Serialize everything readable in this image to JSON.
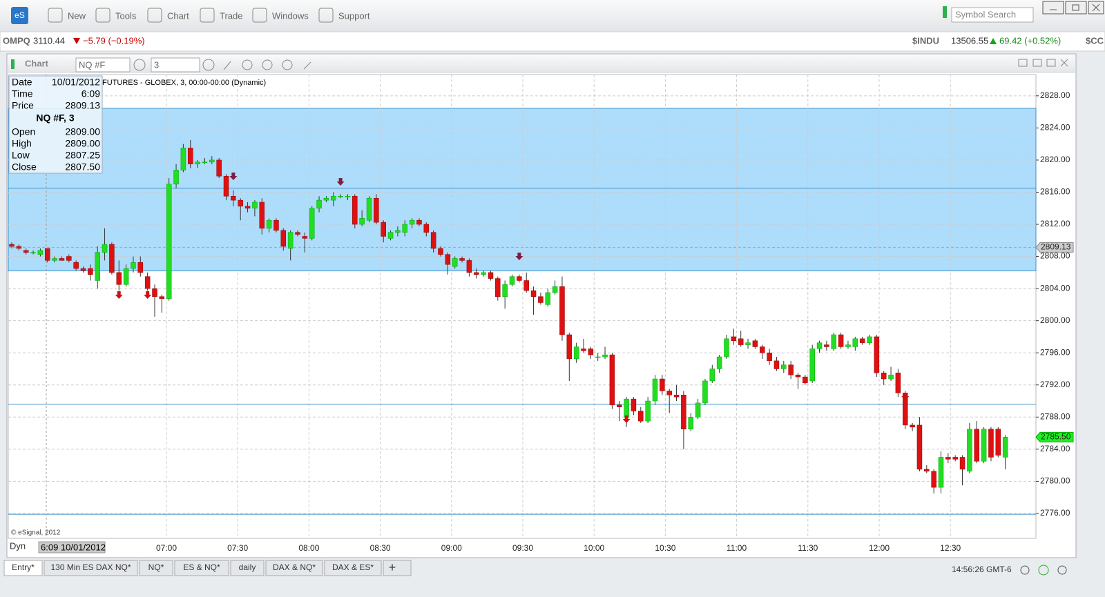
{
  "toolbar": {
    "logo": "eS",
    "buttons": [
      "New",
      "Tools",
      "Chart",
      "Trade",
      "Windows",
      "Support"
    ],
    "search_placeholder": "Symbol Search"
  },
  "ticker": {
    "left": {
      "symbol": "OMPQ",
      "price": "3110.44",
      "change": "−5.79 (−0.19%)"
    },
    "right": {
      "symbol": "$INDU",
      "price": "13506.55",
      "change": "69.42 (+0.52%)",
      "next": "$CC"
    }
  },
  "window": {
    "title": "Chart",
    "symbol": "NQ #F",
    "interval": "3"
  },
  "info": {
    "rows": [
      [
        "Date",
        "10/01/2012"
      ],
      [
        "Time",
        "6:09"
      ],
      [
        "Price",
        "2809.13"
      ]
    ],
    "symbol": "NQ #F, 3",
    "ohlc": [
      [
        "Open",
        "2809.00"
      ],
      [
        "High",
        "2809.00"
      ],
      [
        "Low",
        "2807.25"
      ],
      [
        "Close",
        "2807.50"
      ]
    ]
  },
  "chart_data": {
    "type": "candlestick",
    "subtitle": "FUTURES - GLOBEX, 3, 00:00-00:00 (Dynamic)",
    "copyright": "© eSignal, 2012",
    "up_color": "#22dd22",
    "down_color": "#dd1111",
    "ylim": [
      2772.9,
      2830.65
    ],
    "yticks": [
      {
        "value": 2776,
        "label": "2776.00"
      },
      {
        "value": 2780,
        "label": "2780.00"
      },
      {
        "value": 2784,
        "label": "2784.00"
      },
      {
        "value": 2788,
        "label": "2788.00"
      },
      {
        "value": 2792,
        "label": "2792.00"
      },
      {
        "value": 2796,
        "label": "2796.00"
      },
      {
        "value": 2800,
        "label": "2800.00"
      },
      {
        "value": 2804,
        "label": "2804.00"
      },
      {
        "value": 2808,
        "label": "2808.00"
      },
      {
        "value": 2812,
        "label": "2812.00"
      },
      {
        "value": 2816,
        "label": "2816.00"
      },
      {
        "value": 2820,
        "label": "2820.00"
      },
      {
        "value": 2824,
        "label": "2824.00"
      },
      {
        "value": 2828,
        "label": "2828.00"
      }
    ],
    "x_labels": [
      "07:00",
      "07:30",
      "08:00",
      "08:30",
      "09:00",
      "09:30",
      "10:00",
      "10:30",
      "11:00",
      "11:30",
      "12:00",
      "12:30"
    ],
    "zone": [
      2806.2,
      2826.45
    ],
    "levels": [
      2816.5,
      2789.6,
      2775.9
    ],
    "crosshair_price": 2809.13,
    "last_price": {
      "value": 2785.5,
      "label": "2785.50"
    },
    "candles": [
      [
        2809.5,
        2809.75,
        2809,
        2809.25
      ],
      [
        2809.25,
        2809.5,
        2808.75,
        2809
      ],
      [
        2808.75,
        2809,
        2808.25,
        2808.5
      ],
      [
        2808.5,
        2808.75,
        2808.25,
        2808.5
      ],
      [
        2808.25,
        2809,
        2808,
        2808.75
      ],
      [
        2809,
        2809,
        2807.25,
        2807.5
      ],
      [
        2807.5,
        2808,
        2807.25,
        2807.75
      ],
      [
        2807.75,
        2808,
        2807.5,
        2807.5
      ],
      [
        2808,
        2808.25,
        2807.25,
        2807.5
      ],
      [
        2807.25,
        2807.5,
        2806.25,
        2806.5
      ],
      [
        2806.5,
        2806.75,
        2806,
        2806.25
      ],
      [
        2806.5,
        2807,
        2805,
        2805.75
      ],
      [
        2805,
        2809.25,
        2804,
        2808.5
      ],
      [
        2808.5,
        2811.5,
        2807.5,
        2809.5
      ],
      [
        2809.5,
        2809.75,
        2805.75,
        2806
      ],
      [
        2806,
        2807.5,
        2803.75,
        2804.5
      ],
      [
        2804.5,
        2807,
        2804.25,
        2806.5
      ],
      [
        2806.5,
        2808,
        2806,
        2807.25
      ],
      [
        2807.25,
        2808,
        2805.5,
        2806
      ],
      [
        2805.5,
        2806,
        2803.75,
        2804
      ],
      [
        2804,
        2804.5,
        2800.5,
        2803
      ],
      [
        2803,
        2803.25,
        2801,
        2802.75
      ],
      [
        2802.75,
        2817.75,
        2802.5,
        2817
      ],
      [
        2817,
        2819.5,
        2816.5,
        2818.75
      ],
      [
        2818.75,
        2822,
        2818.5,
        2821.5
      ],
      [
        2821.5,
        2822.5,
        2819,
        2819.5
      ],
      [
        2819.5,
        2820,
        2819,
        2819.75
      ],
      [
        2819.75,
        2820.25,
        2819.5,
        2819.75
      ],
      [
        2819.75,
        2820.5,
        2819.5,
        2820
      ],
      [
        2820,
        2820.25,
        2817.75,
        2818
      ],
      [
        2818,
        2818.25,
        2815,
        2815.5
      ],
      [
        2815.5,
        2816.25,
        2814.25,
        2815
      ],
      [
        2815,
        2815.25,
        2812.5,
        2814.25
      ],
      [
        2814.25,
        2814.75,
        2813.5,
        2814
      ],
      [
        2814,
        2815,
        2813,
        2814.75
      ],
      [
        2814.75,
        2815.25,
        2810.75,
        2811.5
      ],
      [
        2811.5,
        2812.75,
        2811,
        2812.5
      ],
      [
        2812.5,
        2812.75,
        2811,
        2811.25
      ],
      [
        2811.25,
        2811.5,
        2808.75,
        2809.25
      ],
      [
        2809,
        2811.25,
        2807.5,
        2811
      ],
      [
        2811,
        2811.25,
        2810.5,
        2810.75
      ],
      [
        2810.5,
        2811,
        2808.5,
        2810.25
      ],
      [
        2810.25,
        2814.25,
        2810,
        2814
      ],
      [
        2814,
        2815.5,
        2813.5,
        2815
      ],
      [
        2815,
        2815.5,
        2814.75,
        2815.25
      ],
      [
        2815,
        2816,
        2814.25,
        2815.5
      ],
      [
        2815.5,
        2815.75,
        2815.25,
        2815.5
      ],
      [
        2815.5,
        2815.75,
        2815,
        2815.5
      ],
      [
        2815.5,
        2815.75,
        2811.5,
        2812
      ],
      [
        2812,
        2813.75,
        2811.75,
        2812.75
      ],
      [
        2812.5,
        2815.5,
        2812.25,
        2815.25
      ],
      [
        2815.25,
        2815.75,
        2812,
        2812.25
      ],
      [
        2812.25,
        2812.5,
        2809.75,
        2810.5
      ],
      [
        2810.25,
        2811.25,
        2810,
        2811
      ],
      [
        2811,
        2811.75,
        2810.5,
        2811.25
      ],
      [
        2811,
        2812.5,
        2810.5,
        2812
      ],
      [
        2812,
        2812.75,
        2811.5,
        2812.5
      ],
      [
        2812.5,
        2812.75,
        2811.75,
        2812
      ],
      [
        2812,
        2812.25,
        2810.5,
        2811
      ],
      [
        2811,
        2811.25,
        2808.5,
        2809
      ],
      [
        2809,
        2809.25,
        2808,
        2808.25
      ],
      [
        2808.25,
        2808.5,
        2805.75,
        2807
      ],
      [
        2806.75,
        2808,
        2806.5,
        2807.75
      ],
      [
        2807.75,
        2808,
        2807.25,
        2807.5
      ],
      [
        2807.5,
        2807.75,
        2805.5,
        2806
      ],
      [
        2806,
        2806.5,
        2805.25,
        2805.75
      ],
      [
        2805.75,
        2806.25,
        2805.5,
        2806
      ],
      [
        2806,
        2806.25,
        2805,
        2805.25
      ],
      [
        2805.25,
        2805.5,
        2802.5,
        2803
      ],
      [
        2803,
        2805,
        2801.5,
        2804.5
      ],
      [
        2804.5,
        2805.75,
        2804.25,
        2805.5
      ],
      [
        2805.5,
        2805.75,
        2804.75,
        2805
      ],
      [
        2805,
        2806,
        2803.5,
        2803.75
      ],
      [
        2803.75,
        2804.25,
        2800.75,
        2803
      ],
      [
        2803,
        2803.5,
        2802,
        2802.25
      ],
      [
        2802,
        2804,
        2801.75,
        2803.5
      ],
      [
        2803.5,
        2805,
        2803.25,
        2804.25
      ],
      [
        2804.25,
        2805.5,
        2797.5,
        2798.25
      ],
      [
        2798.25,
        2798.5,
        2792.5,
        2795.25
      ],
      [
        2795.25,
        2797.25,
        2794.75,
        2796.75
      ],
      [
        2796.5,
        2797.75,
        2796,
        2796.25
      ],
      [
        2796.5,
        2796.75,
        2795.25,
        2795.75
      ],
      [
        2795.5,
        2796,
        2795,
        2795.5
      ],
      [
        2795.5,
        2796.75,
        2795.25,
        2795.75
      ],
      [
        2795.75,
        2796,
        2789,
        2789.5
      ],
      [
        2789.5,
        2790,
        2787.5,
        2789.25
      ],
      [
        2788,
        2790.5,
        2786.75,
        2790.25
      ],
      [
        2790.25,
        2790.5,
        2788.25,
        2788.75
      ],
      [
        2788.75,
        2789.25,
        2787.25,
        2787.5
      ],
      [
        2787.5,
        2790.5,
        2787.25,
        2790
      ],
      [
        2790,
        2793.25,
        2789.5,
        2792.75
      ],
      [
        2792.75,
        2793.25,
        2790.75,
        2791.25
      ],
      [
        2791.25,
        2791.5,
        2788.5,
        2790.75
      ],
      [
        2790.75,
        2792,
        2790,
        2790.5
      ],
      [
        2790.75,
        2791.25,
        2784,
        2786.5
      ],
      [
        2786.5,
        2788.5,
        2786.25,
        2788
      ],
      [
        2788,
        2790.25,
        2787.75,
        2789.75
      ],
      [
        2789.75,
        2792.75,
        2789.5,
        2792.5
      ],
      [
        2792.5,
        2794.5,
        2792.25,
        2794
      ],
      [
        2794,
        2795.75,
        2793.5,
        2795.5
      ],
      [
        2795.5,
        2798.25,
        2795.25,
        2797.75
      ],
      [
        2798,
        2799,
        2797,
        2797.5
      ],
      [
        2797.75,
        2798.75,
        2796.75,
        2797
      ],
      [
        2797,
        2797.75,
        2796.5,
        2797.25
      ],
      [
        2797.5,
        2797.75,
        2796.5,
        2796.75
      ],
      [
        2796.75,
        2797,
        2795.25,
        2796
      ],
      [
        2796,
        2796.5,
        2794.5,
        2795
      ],
      [
        2795,
        2795.5,
        2793.75,
        2794
      ],
      [
        2794,
        2795,
        2793.5,
        2794.5
      ],
      [
        2794.5,
        2795,
        2792.75,
        2793.25
      ],
      [
        2793.25,
        2793.5,
        2791.5,
        2793
      ],
      [
        2793,
        2793.25,
        2792,
        2792.25
      ],
      [
        2792.5,
        2797,
        2792.25,
        2796.5
      ],
      [
        2796.5,
        2797.5,
        2796,
        2797.25
      ],
      [
        2797,
        2797.5,
        2796.25,
        2796.75
      ],
      [
        2796.5,
        2798.5,
        2796.25,
        2798.25
      ],
      [
        2798.25,
        2798.5,
        2796.5,
        2796.75
      ],
      [
        2796.75,
        2797.5,
        2796.5,
        2797
      ],
      [
        2796.75,
        2798,
        2796.25,
        2797.75
      ],
      [
        2797.75,
        2798,
        2797,
        2797.25
      ],
      [
        2797.25,
        2798.25,
        2797,
        2798
      ],
      [
        2798,
        2798.25,
        2793,
        2793.5
      ],
      [
        2793.5,
        2793.75,
        2792,
        2792.75
      ],
      [
        2792.75,
        2794.25,
        2792.5,
        2793.25
      ],
      [
        2793.5,
        2794,
        2790.5,
        2791
      ],
      [
        2791,
        2791.25,
        2786.5,
        2787
      ],
      [
        2787,
        2787.25,
        2786.25,
        2786.75
      ],
      [
        2787,
        2788,
        2781.25,
        2781.5
      ],
      [
        2781.5,
        2782,
        2781,
        2781.25
      ],
      [
        2781.25,
        2781.5,
        2778.5,
        2779.25
      ],
      [
        2779.25,
        2783.75,
        2778.5,
        2783
      ],
      [
        2783,
        2783.5,
        2782.25,
        2782.75
      ],
      [
        2783,
        2783.25,
        2782.5,
        2782.75
      ],
      [
        2783,
        2783.25,
        2779.5,
        2781.5
      ],
      [
        2781.25,
        2787.25,
        2781,
        2786.5
      ],
      [
        2786.5,
        2787.5,
        2782.25,
        2782.5
      ],
      [
        2782.5,
        2786.75,
        2782.25,
        2786.5
      ],
      [
        2786.5,
        2786.75,
        2782.5,
        2783
      ],
      [
        2786.5,
        2786.75,
        2783,
        2783.25
      ],
      [
        2783,
        2785.75,
        2781.5,
        2785.5
      ]
    ]
  },
  "footer": {
    "dyn": "Dyn",
    "cursor_time": "6:09 10/01/2012",
    "tabs": [
      "Entry*",
      "130 Min ES DAX NQ*",
      "NQ*",
      "ES & NQ*",
      "daily",
      "DAX & NQ*",
      "DAX & ES*"
    ],
    "add_tab": "+",
    "clock": "14:56:26 GMT-6"
  }
}
